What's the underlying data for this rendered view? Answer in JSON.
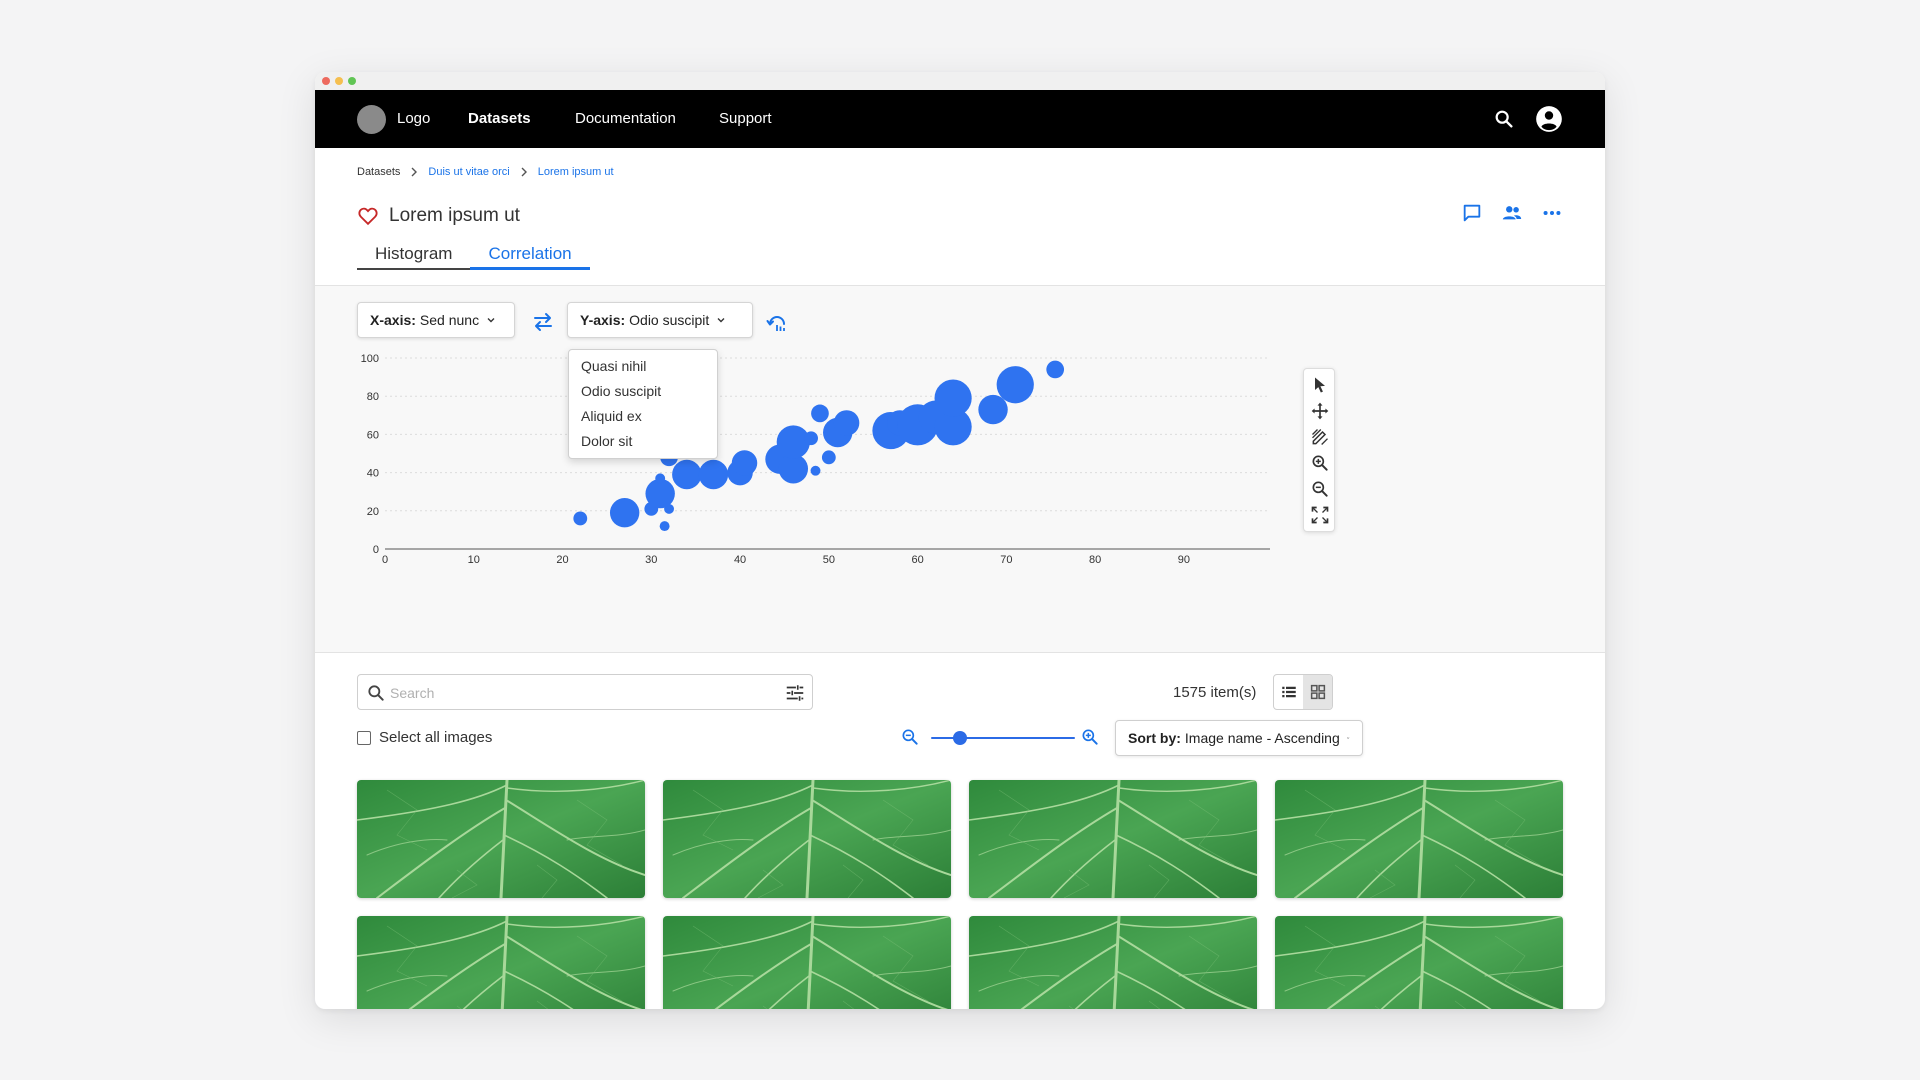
{
  "nav": {
    "logo_label": "Logo",
    "links": [
      {
        "label": "Datasets",
        "active": true
      },
      {
        "label": "Documentation",
        "active": false
      },
      {
        "label": "Support",
        "active": false
      }
    ]
  },
  "breadcrumb": [
    {
      "label": "Datasets",
      "link": false
    },
    {
      "label": "Duis ut vitae orci",
      "link": true
    },
    {
      "label": "Lorem ipsum ut",
      "link": true
    }
  ],
  "page": {
    "title": "Lorem ipsum ut"
  },
  "tabs": [
    {
      "label": "Histogram",
      "active": false
    },
    {
      "label": "Correlation",
      "active": true
    }
  ],
  "correlation": {
    "x_axis": {
      "label": "X-axis:",
      "value": "Sed nunc"
    },
    "y_axis": {
      "label": "Y-axis:",
      "value": "Odio suscipit"
    },
    "dropdown_options": [
      "Quasi nihil",
      "Odio suscipit",
      "Aliquid ex",
      "Dolor sit"
    ]
  },
  "chart_data": {
    "type": "scatter",
    "title": "",
    "xlabel": "",
    "ylabel": "",
    "xlim": [
      0,
      100
    ],
    "ylim": [
      0,
      100
    ],
    "x_ticks": [
      0,
      10,
      20,
      30,
      40,
      50,
      60,
      70,
      80,
      90
    ],
    "y_ticks": [
      0,
      20,
      40,
      60,
      80,
      100
    ],
    "grid": true,
    "color": "#2f73f0",
    "points": [
      {
        "x": 22,
        "y": 16,
        "size": 2
      },
      {
        "x": 27,
        "y": 19,
        "size": 6
      },
      {
        "x": 30,
        "y": 21,
        "size": 2
      },
      {
        "x": 31.5,
        "y": 12,
        "size": 1
      },
      {
        "x": 32,
        "y": 21,
        "size": 1
      },
      {
        "x": 31,
        "y": 29,
        "size": 6
      },
      {
        "x": 31,
        "y": 37,
        "size": 1
      },
      {
        "x": 32,
        "y": 48,
        "size": 3
      },
      {
        "x": 34,
        "y": 39,
        "size": 6
      },
      {
        "x": 37,
        "y": 39,
        "size": 6
      },
      {
        "x": 40,
        "y": 40,
        "size": 5
      },
      {
        "x": 40.5,
        "y": 45,
        "size": 5
      },
      {
        "x": 44.5,
        "y": 47,
        "size": 6
      },
      {
        "x": 46,
        "y": 42,
        "size": 6
      },
      {
        "x": 46,
        "y": 56,
        "size": 7
      },
      {
        "x": 48,
        "y": 58,
        "size": 2
      },
      {
        "x": 48.5,
        "y": 41,
        "size": 1
      },
      {
        "x": 49,
        "y": 71,
        "size": 3
      },
      {
        "x": 50,
        "y": 48,
        "size": 2
      },
      {
        "x": 51,
        "y": 61,
        "size": 6
      },
      {
        "x": 52,
        "y": 66,
        "size": 5
      },
      {
        "x": 57,
        "y": 62,
        "size": 8
      },
      {
        "x": 58,
        "y": 66,
        "size": 5
      },
      {
        "x": 60,
        "y": 65,
        "size": 9
      },
      {
        "x": 62,
        "y": 69,
        "size": 7
      },
      {
        "x": 64,
        "y": 64,
        "size": 8
      },
      {
        "x": 64,
        "y": 79,
        "size": 8
      },
      {
        "x": 68.5,
        "y": 73,
        "size": 6
      },
      {
        "x": 71,
        "y": 86,
        "size": 8
      },
      {
        "x": 75.5,
        "y": 94,
        "size": 3
      }
    ]
  },
  "gallery": {
    "search_placeholder": "Search",
    "item_count": "1575 item(s)",
    "select_all_label": "Select all images",
    "zoom_level": 0.2,
    "sort": {
      "label": "Sort by:",
      "value": "Image name - Ascending"
    },
    "view_mode": "grid",
    "thumbnail_count": 8
  },
  "icons": {
    "favorite": "heart-icon",
    "comment": "comment-icon",
    "share": "people-icon",
    "more": "more-horizontal-icon",
    "swap": "swap-icon",
    "reset": "reset-icon",
    "tools": [
      "pointer-icon",
      "pan-icon",
      "draw-select-icon",
      "zoom-in-icon",
      "zoom-out-icon",
      "fit-screen-icon"
    ]
  },
  "colors": {
    "accent": "#1a73e8",
    "nav_bg": "#000000",
    "favorite": "#c62828",
    "point": "#2f73f0"
  }
}
